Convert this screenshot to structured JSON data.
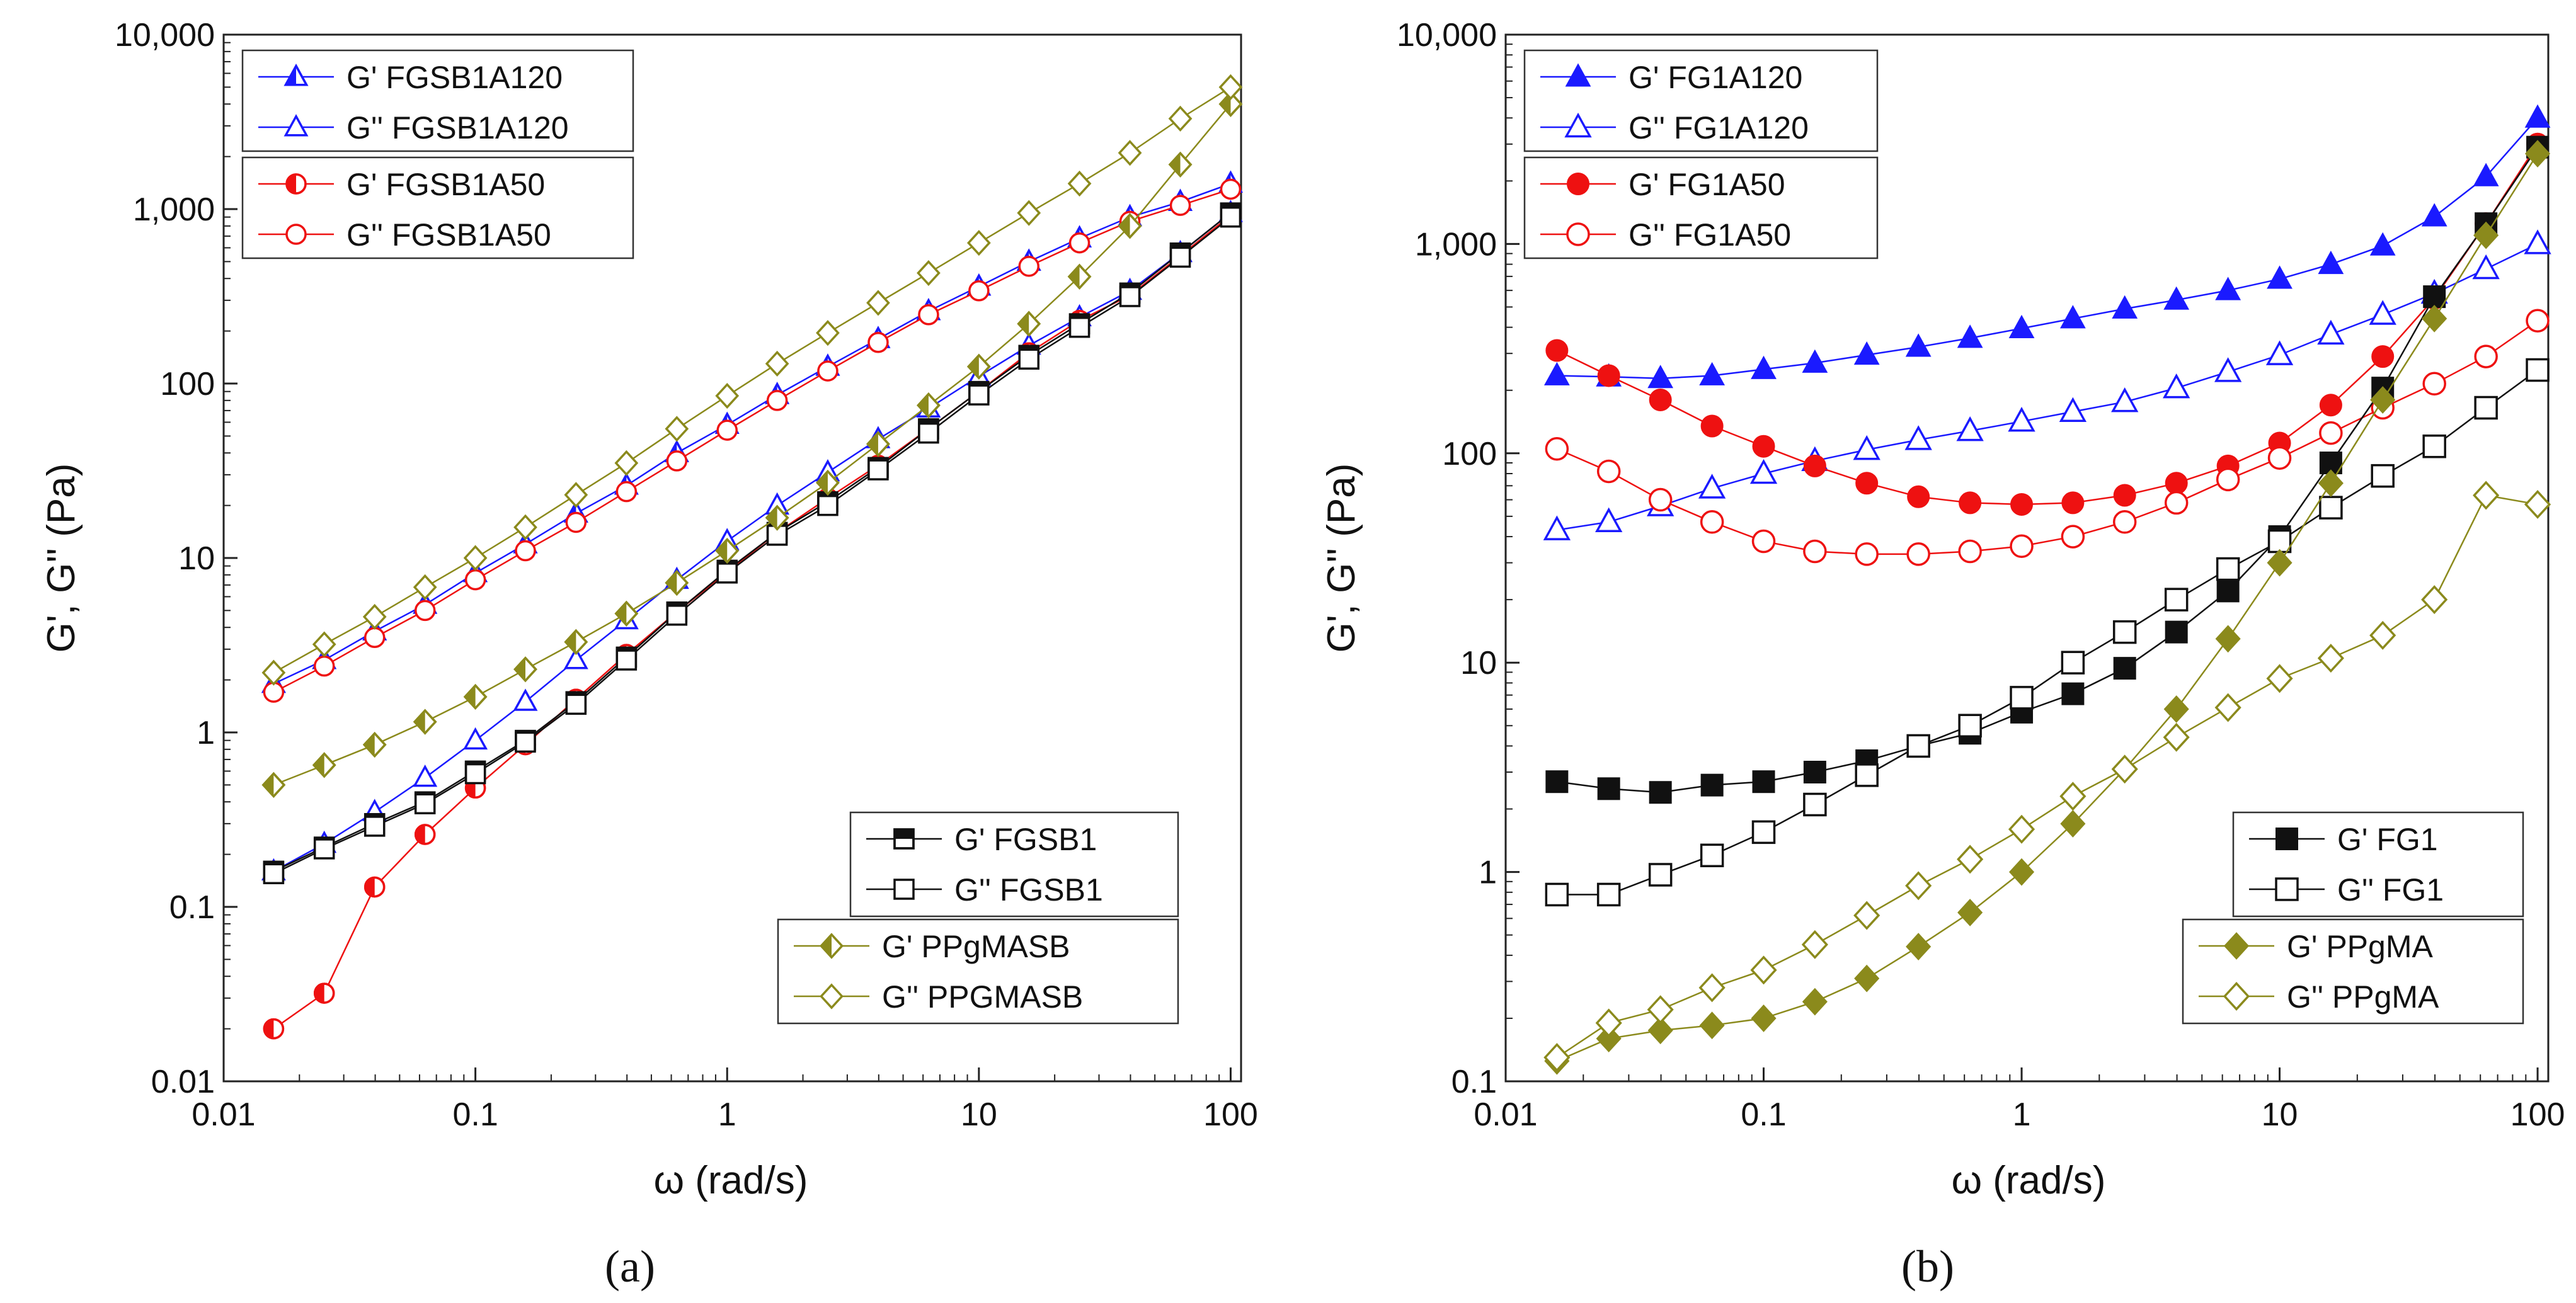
{
  "chart_data": [
    {
      "type": "line",
      "panel": "a",
      "caption": "(a)",
      "xlabel": "ω (rad/s)",
      "ylabel": "G', G'' (Pa)",
      "xscale": "log",
      "yscale": "log",
      "xlim": [
        0.01,
        110
      ],
      "ylim": [
        0.01,
        10000
      ],
      "xticks": [
        "0.01",
        "0.1",
        "1",
        "10",
        "100"
      ],
      "yticks": [
        "0.01",
        "0.1",
        "1",
        "10",
        "100",
        "1,000",
        "10,000"
      ],
      "x": [
        0.0158,
        0.0251,
        0.0398,
        0.0631,
        0.1,
        0.158,
        0.251,
        0.398,
        0.631,
        1,
        1.58,
        2.51,
        3.98,
        6.31,
        10,
        15.8,
        25.1,
        39.8,
        63.1,
        100
      ],
      "series": [
        {
          "name": "G' FGSB1A120",
          "color": "#1a1aff",
          "marker": "triangle-half",
          "values": [
            1.9,
            2.6,
            3.8,
            5.4,
            8.2,
            12,
            18,
            26,
            40,
            58,
            86,
            125,
            180,
            260,
            360,
            500,
            680,
            900,
            1100,
            1400
          ]
        },
        {
          "name": "G'' FGSB1A120",
          "color": "#1a1aff",
          "marker": "triangle-open",
          "values": [
            0.16,
            0.23,
            0.35,
            0.55,
            0.9,
            1.5,
            2.6,
            4.4,
            7.5,
            12.5,
            20,
            31,
            48,
            72,
            110,
            165,
            240,
            340,
            560,
            950
          ]
        },
        {
          "name": "G' FGSB1A50",
          "color": "#ee1111",
          "marker": "circle-half",
          "values": [
            0.02,
            0.032,
            0.13,
            0.26,
            0.48,
            0.85,
            1.55,
            2.8,
            4.9,
            8.3,
            14,
            22,
            34,
            55,
            90,
            150,
            230,
            320,
            540,
            920
          ]
        },
        {
          "name": "G'' FGSB1A50",
          "color": "#ee1111",
          "marker": "circle-open",
          "values": [
            1.7,
            2.4,
            3.5,
            5.0,
            7.5,
            11,
            16,
            24,
            36,
            54,
            80,
            118,
            172,
            248,
            340,
            470,
            640,
            850,
            1050,
            1300
          ]
        },
        {
          "name": "G' FGSB1",
          "color": "#111111",
          "marker": "square-half",
          "values": [
            0.16,
            0.22,
            0.3,
            0.4,
            0.6,
            0.9,
            1.5,
            2.7,
            4.9,
            8.5,
            14,
            21,
            33,
            55,
            90,
            145,
            220,
            330,
            560,
            950
          ]
        },
        {
          "name": "G'' FGSB1",
          "color": "#111111",
          "marker": "square-open",
          "values": [
            0.155,
            0.215,
            0.29,
            0.39,
            0.58,
            0.88,
            1.45,
            2.6,
            4.7,
            8.2,
            13.5,
            20,
            32,
            52,
            86,
            138,
            210,
            315,
            530,
            900
          ]
        },
        {
          "name": "G' PPgMASB",
          "color": "#8b8a1c",
          "marker": "diamond-half",
          "values": [
            0.5,
            0.65,
            0.85,
            1.15,
            1.6,
            2.3,
            3.3,
            4.8,
            7.2,
            11,
            17,
            27,
            45,
            75,
            125,
            220,
            410,
            800,
            1800,
            4000
          ]
        },
        {
          "name": "G'' PPGMASB",
          "color": "#8b8a1c",
          "marker": "diamond-open",
          "values": [
            2.2,
            3.2,
            4.6,
            6.8,
            10,
            15,
            23,
            35,
            55,
            85,
            130,
            195,
            290,
            430,
            640,
            950,
            1400,
            2100,
            3300,
            5000
          ]
        }
      ],
      "legend_groups": [
        {
          "position": "top-left",
          "items": [
            "G' FGSB1A120",
            "G'' FGSB1A120"
          ]
        },
        {
          "position": "top-left",
          "items": [
            "G' FGSB1A50",
            "G'' FGSB1A50"
          ]
        },
        {
          "position": "bottom-right",
          "items": [
            "G' FGSB1",
            "G'' FGSB1"
          ]
        },
        {
          "position": "bottom-right",
          "items": [
            "G' PPgMASB",
            "G'' PPGMASB"
          ]
        }
      ]
    },
    {
      "type": "line",
      "panel": "b",
      "caption": "(b)",
      "xlabel": "ω (rad/s)",
      "ylabel": "G', G'' (Pa)",
      "xscale": "log",
      "yscale": "log",
      "xlim": [
        0.01,
        110
      ],
      "ylim": [
        0.1,
        10000
      ],
      "xticks": [
        "0.01",
        "0.1",
        "1",
        "10",
        "100"
      ],
      "yticks": [
        "0.1",
        "1",
        "10",
        "100",
        "1,000",
        "10,000"
      ],
      "x": [
        0.0158,
        0.0251,
        0.0398,
        0.0631,
        0.1,
        0.158,
        0.251,
        0.398,
        0.631,
        1,
        1.58,
        2.51,
        3.98,
        6.31,
        10,
        15.8,
        25.1,
        39.8,
        63.1,
        100
      ],
      "series": [
        {
          "name": "G' FG1A120",
          "color": "#1a1aff",
          "marker": "triangle-filled",
          "values": [
            235,
            232,
            228,
            235,
            252,
            270,
            295,
            322,
            355,
            395,
            440,
            490,
            540,
            600,
            680,
            800,
            980,
            1350,
            2100,
            4000
          ]
        },
        {
          "name": "G'' FG1A120",
          "color": "#1a1aff",
          "marker": "triangle-open",
          "values": [
            43,
            47,
            56,
            68,
            80,
            92,
            104,
            116,
            128,
            142,
            158,
            176,
            205,
            245,
            295,
            370,
            460,
            580,
            760,
            1000
          ]
        },
        {
          "name": "G' FG1A50",
          "color": "#ee1111",
          "marker": "circle-filled",
          "values": [
            310,
            235,
            180,
            135,
            108,
            87,
            72,
            62,
            58,
            57,
            58,
            63,
            72,
            87,
            112,
            170,
            290,
            550,
            1250,
            3000
          ]
        },
        {
          "name": "G'' FG1A50",
          "color": "#ee1111",
          "marker": "circle-open",
          "values": [
            105,
            82,
            60,
            47,
            38,
            34,
            33,
            33,
            34,
            36,
            40,
            47,
            58,
            75,
            95,
            125,
            165,
            215,
            290,
            430
          ]
        },
        {
          "name": "G' FG1",
          "color": "#111111",
          "marker": "square-filled",
          "values": [
            2.7,
            2.5,
            2.4,
            2.6,
            2.7,
            3.0,
            3.4,
            4.0,
            4.6,
            5.8,
            7.1,
            9.4,
            14,
            22,
            40,
            90,
            205,
            560,
            1250,
            2900
          ]
        },
        {
          "name": "G'' FG1",
          "color": "#111111",
          "marker": "square-open",
          "values": [
            0.78,
            0.78,
            0.97,
            1.2,
            1.55,
            2.1,
            2.9,
            4.0,
            5.0,
            6.8,
            10,
            14,
            20,
            28,
            38,
            55,
            78,
            108,
            165,
            250
          ]
        },
        {
          "name": "G' PPgMA",
          "color": "#8b8a1c",
          "marker": "diamond-filled",
          "values": [
            0.125,
            0.16,
            0.175,
            0.185,
            0.2,
            0.24,
            0.31,
            0.44,
            0.64,
            1.0,
            1.7,
            3.1,
            6.0,
            13,
            30,
            72,
            180,
            440,
            1100,
            2700
          ]
        },
        {
          "name": "G'' PPgMA",
          "color": "#8b8a1c",
          "marker": "diamond-open",
          "values": [
            0.13,
            0.19,
            0.22,
            0.28,
            0.34,
            0.45,
            0.62,
            0.86,
            1.15,
            1.6,
            2.3,
            3.1,
            4.4,
            6.1,
            8.4,
            10.5,
            13.5,
            20,
            63,
            57
          ]
        }
      ],
      "legend_groups": [
        {
          "position": "top-left",
          "items": [
            "G' FG1A120",
            "G'' FG1A120"
          ]
        },
        {
          "position": "top-left",
          "items": [
            "G' FG1A50",
            "G'' FG1A50"
          ]
        },
        {
          "position": "bottom-right",
          "items": [
            "G' FG1",
            "G'' FG1"
          ]
        },
        {
          "position": "bottom-right",
          "items": [
            "G' PPgMA",
            "G'' PPgMA"
          ]
        }
      ]
    }
  ]
}
